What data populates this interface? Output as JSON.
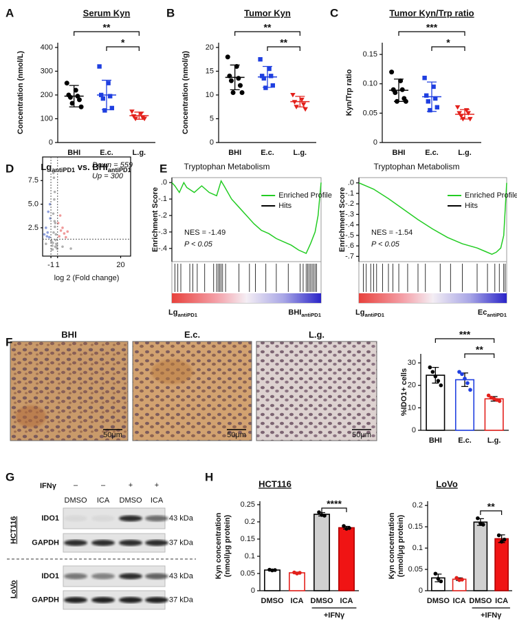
{
  "panels": [
    "A",
    "B",
    "C",
    "D",
    "E",
    "F",
    "G",
    "H"
  ],
  "histology": {
    "labels": [
      "BHI",
      "E.c.",
      "L.g."
    ],
    "scale_bar": "50μm"
  },
  "western_blot": {
    "treatment": "IFNγ",
    "signs": [
      "–",
      "–",
      "+",
      "+"
    ],
    "lanes": [
      "DMSO",
      "ICA",
      "DMSO",
      "ICA"
    ],
    "cell_lines": [
      {
        "name": "HCT116",
        "blots": [
          {
            "protein": "IDO1",
            "size": "43 kDa"
          },
          {
            "protein": "GAPDH",
            "size": "37 kDa"
          }
        ]
      },
      {
        "name": "LoVo",
        "blots": [
          {
            "protein": "IDO1",
            "size": "43 kDa"
          },
          {
            "protein": "GAPDH",
            "size": "37 kDa"
          }
        ]
      }
    ]
  },
  "chart_data": [
    {
      "type": "dot",
      "title": "Serum Kyn",
      "ylabel": "Concentration (nmol/L)",
      "categories": [
        "BHI",
        "E.c.",
        "L.g."
      ],
      "groups": [
        {
          "color": "#000000",
          "marker": "circle",
          "values": [
            250,
            220,
            200,
            195,
            190,
            180,
            165,
            150
          ],
          "mean": 195,
          "sd": 45
        },
        {
          "color": "#1f3fe0",
          "marker": "square",
          "values": [
            320,
            250,
            200,
            195,
            185,
            145,
            135
          ],
          "mean": 200,
          "sd": 62
        },
        {
          "color": "#e3201b",
          "marker": "triangle",
          "values": [
            130,
            120,
            110,
            105,
            100,
            100
          ],
          "mean": 113,
          "sd": 15
        }
      ],
      "ylim": [
        0,
        420
      ],
      "yticks": [
        0,
        100,
        200,
        300,
        400
      ],
      "brackets": [
        {
          "pair": [
            0,
            2
          ],
          "label": "**"
        },
        {
          "pair": [
            1,
            2
          ],
          "label": "*"
        }
      ]
    },
    {
      "type": "dot",
      "title": "Tumor Kyn",
      "ylabel": "Concentration (nmol/g)",
      "categories": [
        "BHI",
        "E.c.",
        "L.g."
      ],
      "groups": [
        {
          "color": "#000000",
          "marker": "circle",
          "values": [
            18,
            16,
            14,
            13.5,
            13,
            12,
            10.5,
            10.5
          ],
          "mean": 13.7,
          "sd": 2.6
        },
        {
          "color": "#1f3fe0",
          "marker": "square",
          "values": [
            17.5,
            15.5,
            14,
            14,
            13.5,
            12,
            11.5
          ],
          "mean": 13.8,
          "sd": 2.2
        },
        {
          "color": "#e3201b",
          "marker": "triangle",
          "values": [
            10,
            9,
            8.5,
            8,
            7.5,
            7
          ],
          "mean": 8.6,
          "sd": 1.1
        }
      ],
      "ylim": [
        0,
        21
      ],
      "yticks": [
        0,
        5,
        10,
        15,
        20
      ],
      "brackets": [
        {
          "pair": [
            0,
            2
          ],
          "label": "**"
        },
        {
          "pair": [
            1,
            2
          ],
          "label": "**"
        }
      ]
    },
    {
      "type": "dot",
      "title": "Tumor Kyn/Trp ratio",
      "ylabel": "Kyn/Trp ratio",
      "categories": [
        "BHI",
        "E.c.",
        "L.g."
      ],
      "groups": [
        {
          "color": "#000000",
          "marker": "circle",
          "values": [
            0.12,
            0.105,
            0.09,
            0.09,
            0.085,
            0.075,
            0.07,
            0.07
          ],
          "mean": 0.089,
          "sd": 0.019
        },
        {
          "color": "#1f3fe0",
          "marker": "square",
          "values": [
            0.11,
            0.095,
            0.08,
            0.075,
            0.07,
            0.06,
            0.055
          ],
          "mean": 0.078,
          "sd": 0.025
        },
        {
          "color": "#e3201b",
          "marker": "triangle",
          "values": [
            0.06,
            0.055,
            0.05,
            0.05,
            0.045,
            0.04,
            0.04
          ],
          "mean": 0.048,
          "sd": 0.008
        }
      ],
      "ylim": [
        0,
        0.17
      ],
      "yticks": [
        0,
        0.05,
        {
          "value": 0.1,
          "label": "0.10"
        },
        0.15
      ],
      "brackets": [
        {
          "pair": [
            0,
            2
          ],
          "label": "***"
        },
        {
          "pair": [
            1,
            2
          ],
          "label": "*"
        }
      ]
    },
    {
      "type": "volcano",
      "title": [
        "Lg",
        "antiPD1",
        " vs. BHI",
        "antiPD1"
      ],
      "xlabel": "log 2 (Fold change)",
      "annotations": [
        {
          "text": "Down = 559",
          "color": "#4a6fc9"
        },
        {
          "text": "Up = 300",
          "color": "#e02020"
        }
      ],
      "series": [
        {
          "color": "#b0b0b0",
          "x": [
            -0.5,
            0.3,
            -0.8,
            0.6,
            -0.2,
            0.1,
            0.9,
            -0.6,
            0.4,
            -0.3,
            0.2,
            -0.9,
            0.7,
            0.0,
            -0.4,
            0.5,
            -0.1,
            0.8,
            0.3,
            -0.7,
            0.15,
            -0.25,
            2.5,
            5,
            -2.5
          ],
          "values": [
            0.2,
            0.5,
            1.0,
            0.8,
            2.0,
            3.2,
            0.3,
            0.6,
            1.2,
            4.0,
            2.6,
            1.1,
            0.4,
            5.5,
            0.9,
            1.8,
            7.8,
            0.7,
            3.0,
            0.2,
            6.3,
            8.3,
            0.5,
            0.3,
            0.8
          ]
        },
        {
          "color": "#8fa0dc",
          "x": [
            -1.5,
            -2,
            -3,
            -1.2,
            -2.5,
            -1.8,
            -1.3,
            -2.2
          ],
          "values": [
            1.5,
            2,
            1.8,
            3.5,
            2.5,
            4.2,
            5,
            1.6
          ]
        },
        {
          "color": "#f09a9a",
          "x": [
            1.5,
            2,
            3,
            1.2,
            2.5,
            1.8,
            4,
            3.5
          ],
          "values": [
            1.6,
            2.2,
            1.9,
            3,
            2.5,
            3.8,
            2.1,
            1.5
          ]
        }
      ],
      "x_thresholds": [
        -1,
        1
      ],
      "y_threshold": 1.3,
      "xlim": [
        -3.5,
        23
      ],
      "ylim": [
        -0.5,
        10
      ],
      "xticks": [
        -1,
        1,
        20
      ],
      "yticks": [
        2.5,
        {
          "value": 5,
          "label": "5.0"
        },
        7.5
      ]
    },
    {
      "type": "gsea",
      "title": "Tryptophan Metabolism",
      "ylabel": "Enrichment Score",
      "annotations": [
        "NES = -1.49",
        "P < 0.05"
      ],
      "rank_labels": [
        [
          "Lg",
          "antiPD1"
        ],
        [
          "BHI",
          "antiPD1"
        ]
      ],
      "series": [
        {
          "name": "Enriched Profile",
          "color": "#22cc22",
          "x": [
            0,
            0.02,
            0.05,
            0.08,
            0.1,
            0.15,
            0.2,
            0.25,
            0.3,
            0.33,
            0.35,
            0.4,
            0.45,
            0.5,
            0.55,
            0.6,
            0.65,
            0.7,
            0.75,
            0.8,
            0.85,
            0.9,
            0.93,
            0.96,
            0.98,
            1
          ],
          "values": [
            0,
            -0.02,
            -0.06,
            0,
            -0.03,
            -0.06,
            -0.02,
            -0.06,
            -0.08,
            0.01,
            -0.02,
            -0.1,
            -0.15,
            -0.2,
            -0.25,
            -0.29,
            -0.31,
            -0.34,
            -0.36,
            -0.38,
            -0.41,
            -0.43,
            -0.37,
            -0.3,
            -0.2,
            0
          ]
        },
        {
          "name": "Hits",
          "color": "#000000",
          "x": [
            0.02,
            0.04,
            0.06,
            0.12,
            0.14,
            0.17,
            0.22,
            0.28,
            0.3,
            0.31,
            0.32,
            0.33,
            0.34,
            0.36,
            0.45,
            0.52,
            0.56,
            0.63,
            0.7,
            0.78,
            0.86,
            0.88,
            0.9,
            0.91,
            0.92,
            0.93,
            0.94,
            0.95,
            0.96,
            0.97
          ]
        }
      ],
      "xlim": [
        0,
        1
      ],
      "ylim": [
        -0.48,
        0.03
      ],
      "yticks": [
        {
          "value": 0,
          "label": ".0"
        },
        {
          "value": -0.1,
          "label": "-.1"
        },
        {
          "value": -0.2,
          "label": "-.2"
        },
        {
          "value": -0.3,
          "label": "-.3"
        },
        {
          "value": -0.4,
          "label": "-.4"
        }
      ]
    },
    {
      "type": "gsea",
      "title": "Tryptophan Metabolism",
      "ylabel": "Enrichment Score",
      "annotations": [
        "NES = -1.54",
        "P < 0.05"
      ],
      "rank_labels": [
        [
          "Lg",
          "antiPD1"
        ],
        [
          "Ec",
          "antiPD1"
        ]
      ],
      "series": [
        {
          "name": "Enriched Profile",
          "color": "#22cc22",
          "x": [
            0,
            0.05,
            0.1,
            0.2,
            0.3,
            0.4,
            0.5,
            0.6,
            0.7,
            0.8,
            0.85,
            0.9,
            0.93,
            0.96,
            0.98,
            1
          ],
          "values": [
            0,
            -0.03,
            -0.06,
            -0.15,
            -0.25,
            -0.35,
            -0.44,
            -0.52,
            -0.58,
            -0.62,
            -0.65,
            -0.68,
            -0.66,
            -0.62,
            -0.5,
            0
          ]
        },
        {
          "name": "Hits",
          "color": "#000000",
          "x": [
            0.03,
            0.05,
            0.08,
            0.1,
            0.12,
            0.16,
            0.2,
            0.23,
            0.27,
            0.33,
            0.4,
            0.45,
            0.55,
            0.62,
            0.7,
            0.8,
            0.87,
            0.92,
            0.95,
            0.98,
            0.99
          ]
        }
      ],
      "xlim": [
        0,
        1
      ],
      "ylim": [
        -0.75,
        0.05
      ],
      "yticks": [
        {
          "value": 0,
          "label": ".0"
        },
        {
          "value": -0.1,
          "label": "-.1"
        },
        {
          "value": -0.2,
          "label": "-.2"
        },
        {
          "value": -0.3,
          "label": "-.3"
        },
        {
          "value": -0.4,
          "label": "-.4"
        },
        {
          "value": -0.5,
          "label": "-.5"
        },
        {
          "value": -0.6,
          "label": "-.6"
        },
        {
          "value": -0.7,
          "label": "-.7"
        }
      ]
    },
    {
      "type": "bar",
      "ylabel": "%IDO1+ cells",
      "categories": [
        "BHI",
        "E.c.",
        "L.g."
      ],
      "bars": [
        {
          "value": 24.5,
          "sd": 3.5,
          "points": [
            28,
            26,
            24,
            22,
            20
          ],
          "fill": "#ffffff",
          "stroke": "#000000",
          "point_color": "#000000"
        },
        {
          "value": 22.5,
          "sd": 3,
          "points": [
            26,
            25,
            23,
            21,
            18
          ],
          "fill": "#ffffff",
          "stroke": "#1f3fe0",
          "point_color": "#1f3fe0"
        },
        {
          "value": 14,
          "sd": 1,
          "points": [
            15.5,
            14.5,
            14,
            13.5,
            13
          ],
          "fill": "#ffffff",
          "stroke": "#e3201b",
          "point_color": "#e3201b"
        }
      ],
      "ylim": [
        0,
        34
      ],
      "yticks": [
        0,
        10,
        20,
        30
      ],
      "brackets": [
        {
          "pair": [
            0,
            2
          ],
          "label": "***"
        },
        {
          "pair": [
            1,
            2
          ],
          "label": "**"
        }
      ]
    },
    {
      "type": "bar",
      "title": "HCT116",
      "ylabel": [
        "Kyn concentration",
        "(nmol/μg protein)"
      ],
      "categories": [
        "DMSO",
        "ICA",
        "DMSO",
        "ICA"
      ],
      "group": {
        "label": "+IFNγ",
        "bars": [
          2,
          3
        ]
      },
      "bars": [
        {
          "value": 0.06,
          "sd": 0.002,
          "points": [
            0.061,
            0.059,
            0.06
          ],
          "fill": "#ffffff",
          "stroke": "#000000",
          "point_color": "#000000"
        },
        {
          "value": 0.052,
          "sd": 0.002,
          "points": [
            0.053,
            0.05,
            0.052
          ],
          "fill": "#ffffff",
          "stroke": "#e3201b",
          "point_color": "#e3201b"
        },
        {
          "value": 0.222,
          "sd": 0.005,
          "points": [
            0.228,
            0.22,
            0.218
          ],
          "fill": "#d0d0d0",
          "stroke": "#000000",
          "point_color": "#000000"
        },
        {
          "value": 0.183,
          "sd": 0.004,
          "points": [
            0.188,
            0.18,
            0.182
          ],
          "fill": "#f01414",
          "stroke": "#b00000",
          "point_color": "#000000"
        }
      ],
      "ylim": [
        0,
        0.26
      ],
      "yticks": [
        0,
        0.05,
        0.1,
        0.15,
        0.2,
        0.25
      ],
      "brackets": [
        {
          "pair": [
            2,
            3
          ],
          "label": "****"
        }
      ]
    },
    {
      "type": "bar",
      "title": "LoVo",
      "ylabel": [
        "Kyn concentration",
        "(nmol/μg protein)"
      ],
      "categories": [
        "DMSO",
        "ICA",
        "DMSO",
        "ICA"
      ],
      "group": {
        "label": "+IFNγ",
        "bars": [
          2,
          3
        ]
      },
      "bars": [
        {
          "value": 0.03,
          "sd": 0.009,
          "points": [
            0.04,
            0.028,
            0.022
          ],
          "fill": "#ffffff",
          "stroke": "#000000",
          "point_color": "#000000"
        },
        {
          "value": 0.027,
          "sd": 0.003,
          "points": [
            0.03,
            0.025,
            0.026
          ],
          "fill": "#ffffff",
          "stroke": "#e3201b",
          "point_color": "#e3201b"
        },
        {
          "value": 0.161,
          "sd": 0.008,
          "points": [
            0.17,
            0.158,
            0.155
          ],
          "fill": "#d0d0d0",
          "stroke": "#000000",
          "point_color": "#000000"
        },
        {
          "value": 0.122,
          "sd": 0.009,
          "points": [
            0.13,
            0.115,
            0.12
          ],
          "fill": "#f01414",
          "stroke": "#b00000",
          "point_color": "#000000"
        }
      ],
      "ylim": [
        0,
        0.21
      ],
      "yticks": [
        0,
        0.05,
        0.1,
        0.15,
        0.2
      ],
      "brackets": [
        {
          "pair": [
            2,
            3
          ],
          "label": "**"
        }
      ]
    }
  ]
}
